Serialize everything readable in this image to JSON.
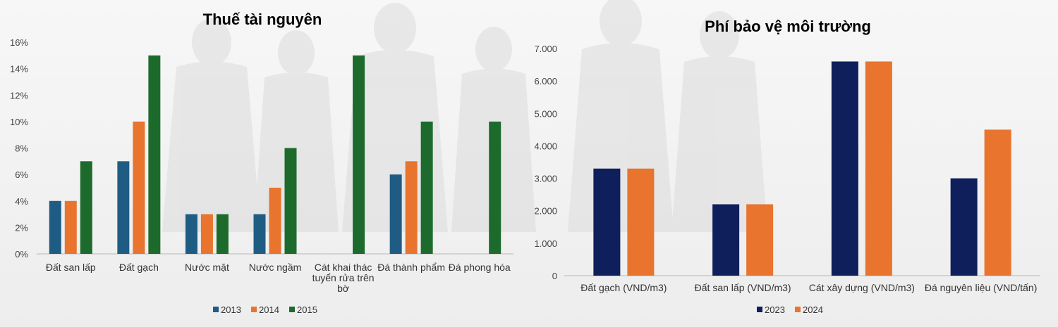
{
  "chart_data": [
    {
      "type": "bar",
      "title": "Thuế tài nguyên",
      "xlabel": "",
      "ylabel": "",
      "ylim": [
        0,
        16
      ],
      "yticks": [
        "0%",
        "2%",
        "4%",
        "6%",
        "8%",
        "10%",
        "12%",
        "14%",
        "16%"
      ],
      "ytick_values": [
        0,
        2,
        4,
        6,
        8,
        10,
        12,
        14,
        16
      ],
      "categories": [
        [
          "Đất san lấp"
        ],
        [
          "Đất gạch"
        ],
        [
          "Nước mặt"
        ],
        [
          "Nước ngầm"
        ],
        [
          "Cát khai thác",
          "tuyển rửa trên",
          "bờ"
        ],
        [
          "Đá thành phẩm"
        ],
        [
          "Đá phong hóa"
        ]
      ],
      "series": [
        {
          "name": "2013",
          "color": "#1f5c84",
          "values": [
            4,
            7,
            3,
            3,
            null,
            6,
            null
          ]
        },
        {
          "name": "2014",
          "color": "#e8742e",
          "values": [
            4,
            10,
            3,
            5,
            null,
            7,
            null
          ]
        },
        {
          "name": "2015",
          "color": "#1d6b2c",
          "values": [
            7,
            15,
            3,
            8,
            15,
            10,
            10
          ]
        }
      ],
      "grid": false,
      "legend": "bottom"
    },
    {
      "type": "bar",
      "title": "Phí bảo vệ môi trường",
      "xlabel": "",
      "ylabel": "",
      "ylim": [
        0,
        7000
      ],
      "yticks": [
        "0",
        "1.000",
        "2.000",
        "3.000",
        "4.000",
        "5.000",
        "6.000",
        "7.000"
      ],
      "ytick_values": [
        0,
        1000,
        2000,
        3000,
        4000,
        5000,
        6000,
        7000
      ],
      "categories": [
        [
          "Đất gạch (VND/m3)"
        ],
        [
          "Đất san lấp (VND/m3)"
        ],
        [
          "Cát xây dựng (VND/m3)"
        ],
        [
          "Đá nguyên liệu (VND/tấn)"
        ]
      ],
      "series": [
        {
          "name": "2023",
          "color": "#0f1f5c",
          "values": [
            3300,
            2200,
            6600,
            3000
          ]
        },
        {
          "name": "2024",
          "color": "#e8742e",
          "values": [
            3300,
            2200,
            6600,
            4500
          ]
        }
      ],
      "grid": false,
      "legend": "bottom"
    }
  ]
}
